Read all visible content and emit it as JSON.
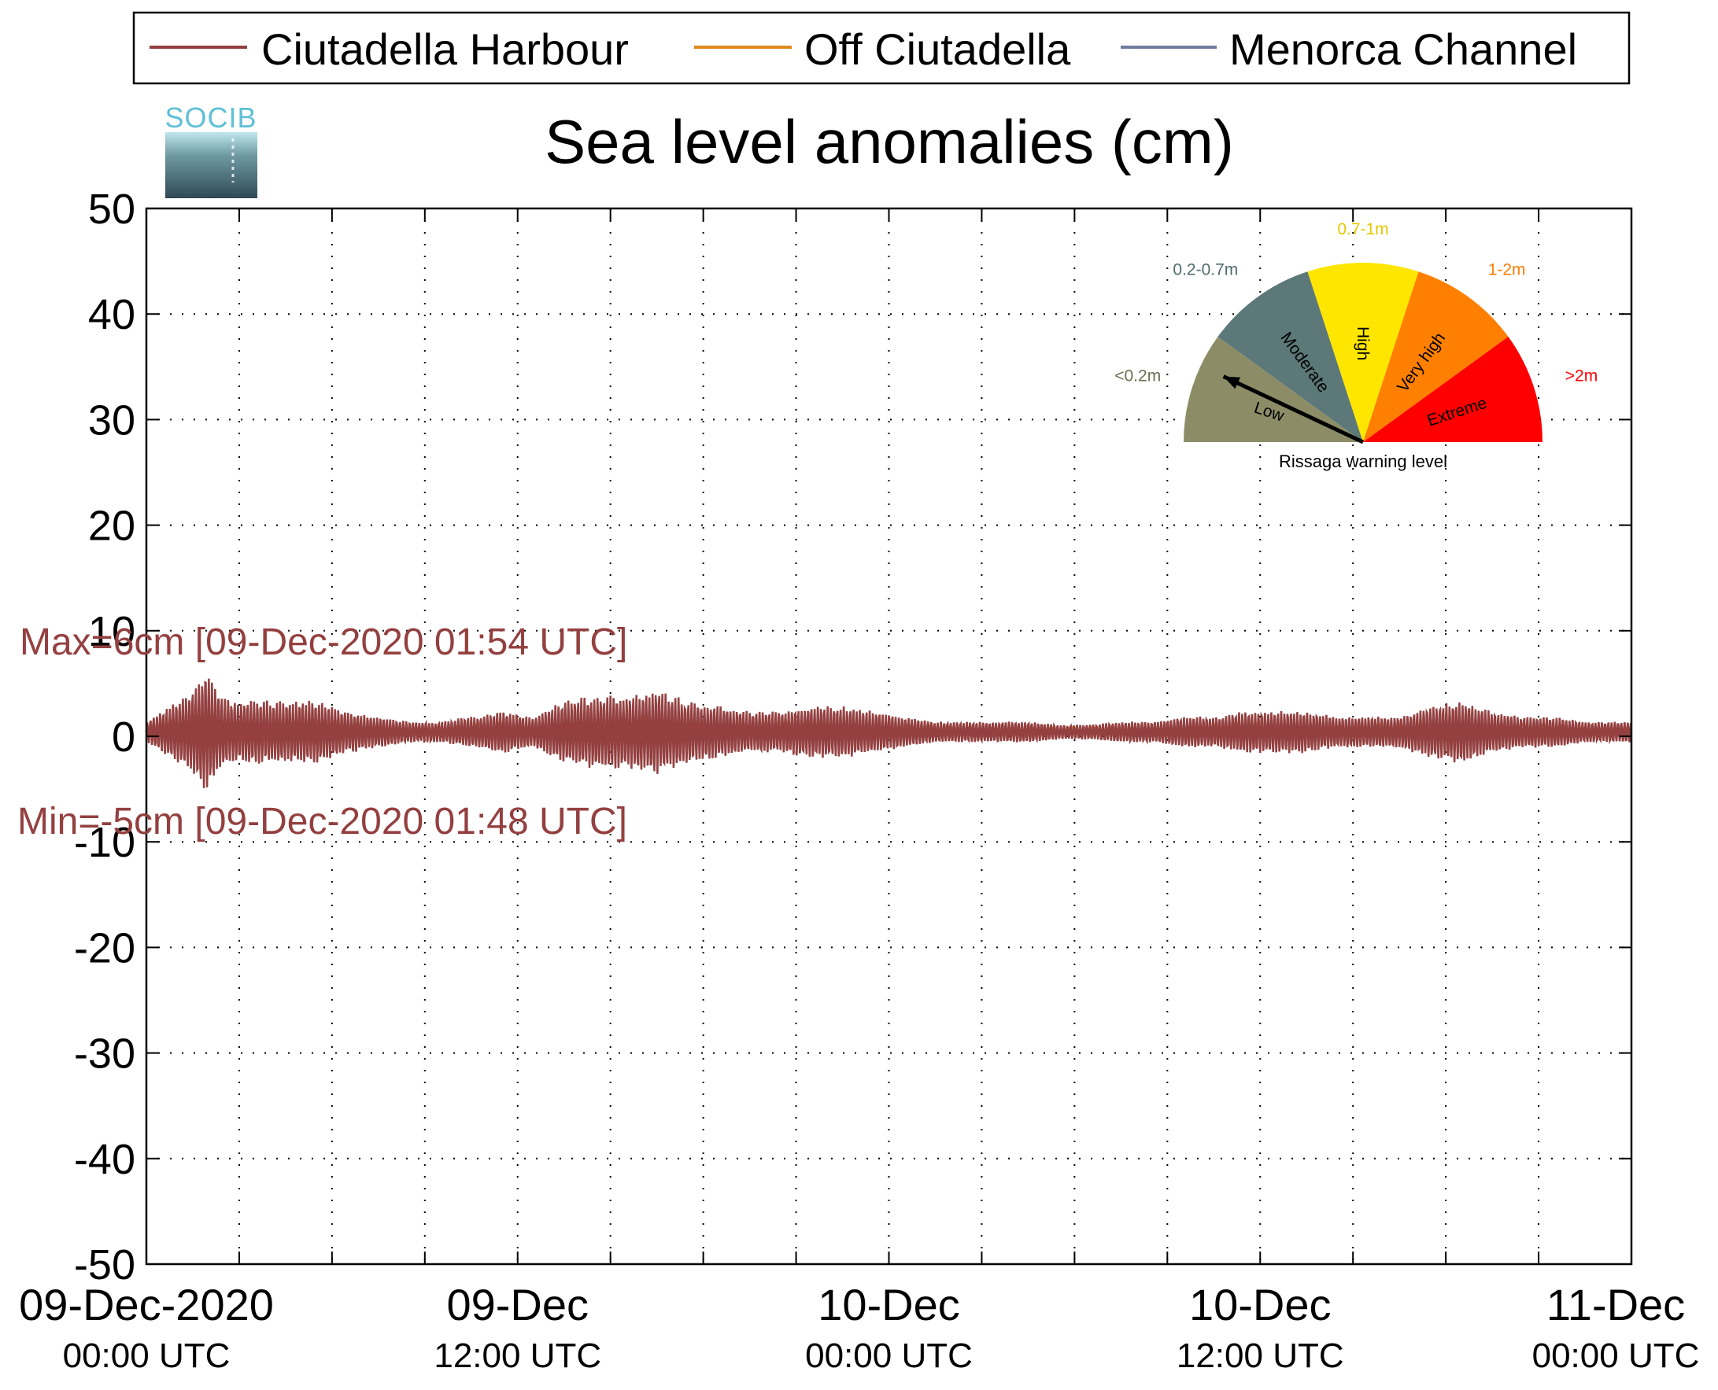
{
  "logo": {
    "text": "SOCIB"
  },
  "chart_data": {
    "type": "line",
    "title": "Sea level anomalies (cm)",
    "xlabel": "",
    "ylabel": "",
    "ylim": [
      -50,
      50
    ],
    "yticks": [
      50,
      40,
      30,
      20,
      10,
      0,
      -10,
      -20,
      -30,
      -40,
      -50
    ],
    "x_range_hours": [
      0,
      48
    ],
    "x_tick_hours": [
      0,
      3,
      6,
      9,
      12,
      15,
      18,
      21,
      24,
      27,
      30,
      33,
      36,
      39,
      42,
      45,
      48
    ],
    "x_tick_labels": [
      {
        "hour": 0,
        "date": "09-Dec-2020",
        "time": "00:00 UTC"
      },
      {
        "hour": 12,
        "date": "09-Dec",
        "time": "12:00 UTC"
      },
      {
        "hour": 24,
        "date": "10-Dec",
        "time": "00:00 UTC"
      },
      {
        "hour": 36,
        "date": "10-Dec",
        "time": "12:00 UTC"
      },
      {
        "hour": 48,
        "date": "11-Dec",
        "time": "00:00 UTC"
      }
    ],
    "grid": true,
    "legend_position": "top",
    "series": [
      {
        "name": "Ciutadella Harbour",
        "color": "#944040",
        "envelope_hours": [
          0,
          1,
          1.5,
          1.9,
          2.3,
          2.8,
          3.5,
          4.5,
          5.5,
          6.5,
          7.5,
          8.5,
          9.5,
          10.5,
          11.5,
          12.5,
          13.5,
          14.5,
          15.5,
          16.5,
          17.5,
          18.5,
          19.5,
          20.5,
          21.5,
          22.5,
          23.5,
          24.5,
          25.5,
          26.5,
          27.5,
          28.5,
          29.5,
          30.5,
          31.5,
          32.5,
          33.5,
          34.5,
          35.5,
          36.5,
          37.5,
          38.5,
          39.5,
          40.5,
          41.5,
          42.5,
          43.5,
          44.5,
          45.5,
          46.5,
          47.5,
          48
        ],
        "envelope_cm": [
          1,
          3,
          4,
          6,
          4,
          3,
          3,
          3,
          3,
          2,
          1.5,
          1,
          1,
          1.5,
          2,
          1.5,
          3,
          3.5,
          3.5,
          4,
          3,
          2.5,
          2,
          2,
          2.5,
          2.5,
          2,
          1.5,
          1,
          1,
          1,
          1,
          0.7,
          0.7,
          1,
          1,
          1.5,
          1.5,
          2,
          2,
          2,
          1.5,
          1.5,
          1.5,
          2.5,
          3,
          2,
          1.5,
          1.5,
          1,
          1,
          1
        ]
      },
      {
        "name": "Off Ciutadella",
        "color": "#e08a1c"
      },
      {
        "name": "Menorca Channel",
        "color": "#707b9c"
      }
    ],
    "annotations": {
      "max": "Max=6cm [09-Dec-2020 01:54 UTC]",
      "min": "Min=-5cm [09-Dec-2020 01:48 UTC]"
    }
  },
  "gauge": {
    "caption": "Rissaga warning level",
    "needle_level": "Low",
    "segments": [
      {
        "label": "Low",
        "range": "<0.2m",
        "color": "#8c8c66"
      },
      {
        "label": "Moderate",
        "range": "0.2-0.7m",
        "color": "#5c7878"
      },
      {
        "label": "High",
        "range": "0.7-1m",
        "color": "#ffe600"
      },
      {
        "label": "Very high",
        "range": "1-2m",
        "color": "#ff8000"
      },
      {
        "label": "Extreme",
        "range": ">2m",
        "color": "#ff0000"
      }
    ]
  }
}
